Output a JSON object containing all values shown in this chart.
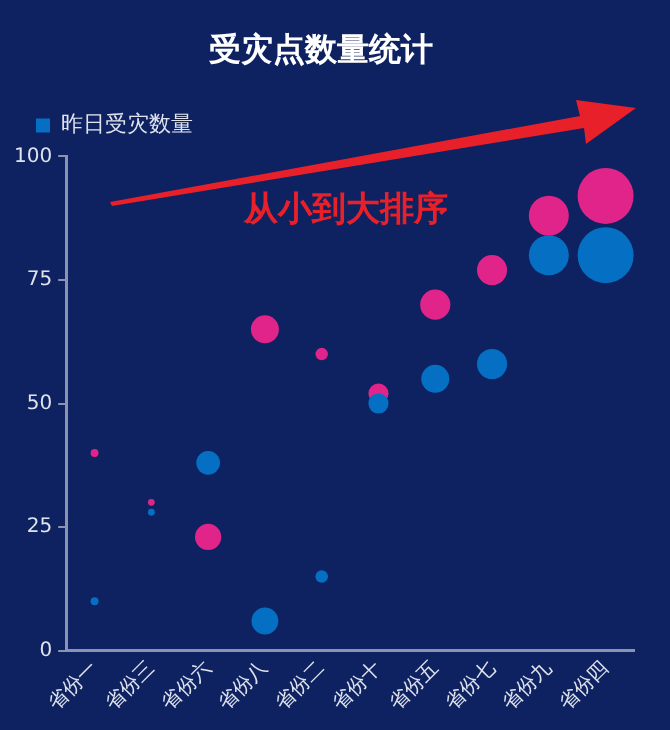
{
  "chart_data": {
    "type": "bubble",
    "title": "受灾点数量统计",
    "categories": [
      "省份一",
      "省份三",
      "省份六",
      "省份八",
      "省份二",
      "省份十",
      "省份五",
      "省份七",
      "省份九",
      "省份四"
    ],
    "series": [
      {
        "name": "昨日受灾数量",
        "color": "#0570c3",
        "values": [
          10,
          28,
          38,
          6,
          15,
          50,
          55,
          58,
          80,
          80
        ],
        "sizes": [
          0.02,
          0.015,
          0.18,
          0.23,
          0.05,
          0.13,
          0.25,
          0.29,
          0.51,
          1
        ]
      },
      {
        "color": "#e0248a",
        "values": [
          40,
          30,
          23,
          65,
          60,
          52,
          70,
          77,
          88,
          92
        ],
        "sizes": [
          0.02,
          0.015,
          0.22,
          0.25,
          0.05,
          0.13,
          0.29,
          0.29,
          0.51,
          1
        ]
      }
    ],
    "ylim": [
      0,
      100
    ],
    "yticks": [
      0,
      25,
      50,
      75,
      100
    ],
    "grid": false,
    "legend": "top left",
    "annotations": [
      "从小到大排序"
    ]
  }
}
